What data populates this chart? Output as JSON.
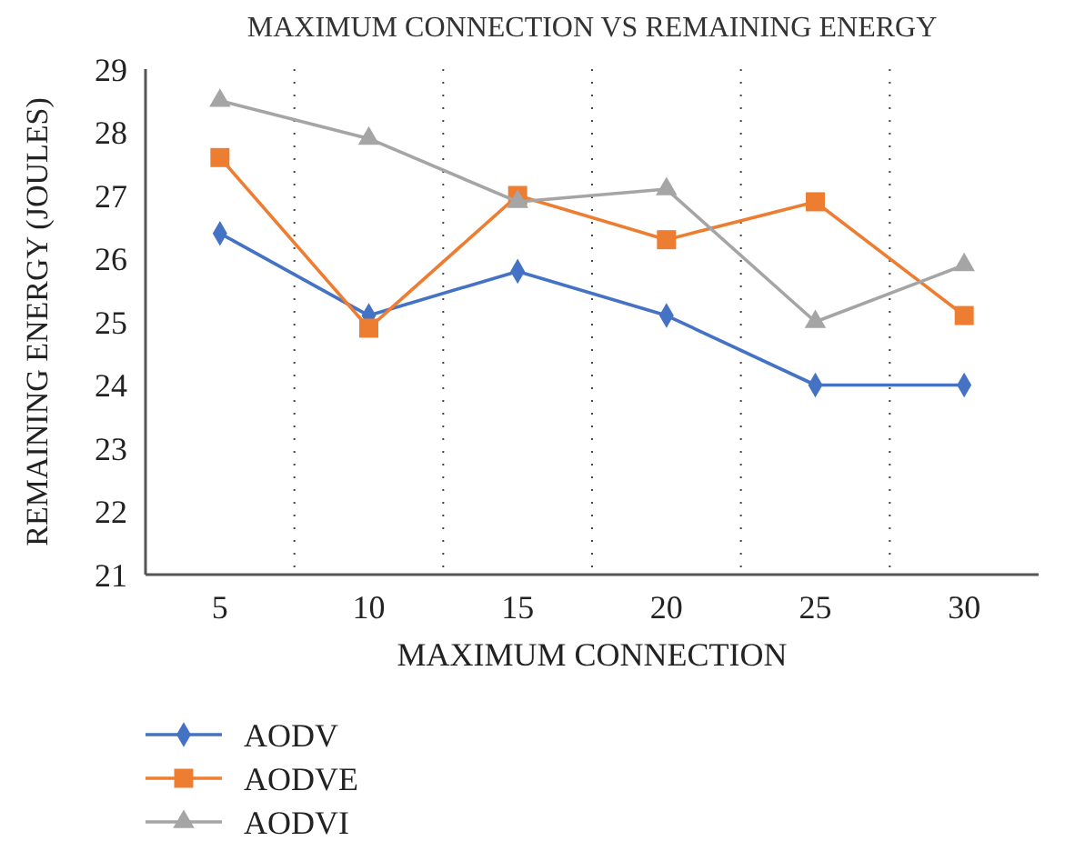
{
  "chart_data": {
    "type": "line",
    "title": "MAXIMUM CONNECTION VS REMAINING ENERGY",
    "xlabel": "MAXIMUM CONNECTION",
    "ylabel": "REMAINING ENERGY (JOULES)",
    "categories": [
      "5",
      "10",
      "15",
      "20",
      "25",
      "30"
    ],
    "ylim": [
      21,
      29
    ],
    "yticks": [
      21,
      22,
      23,
      24,
      25,
      26,
      27,
      28,
      29
    ],
    "grid": "x",
    "legend": "bottom",
    "series": [
      {
        "name": "AODV",
        "color": "#4472c4",
        "marker": "diamond",
        "values": [
          26.4,
          25.1,
          25.8,
          25.1,
          24.0,
          24.0
        ]
      },
      {
        "name": "AODVE",
        "color": "#ed7d31",
        "marker": "square",
        "values": [
          27.6,
          24.9,
          27.0,
          26.3,
          26.9,
          25.1
        ]
      },
      {
        "name": "AODVI",
        "color": "#a5a5a5",
        "marker": "triangle",
        "values": [
          28.5,
          27.9,
          26.9,
          27.1,
          25.0,
          25.9
        ]
      }
    ]
  }
}
